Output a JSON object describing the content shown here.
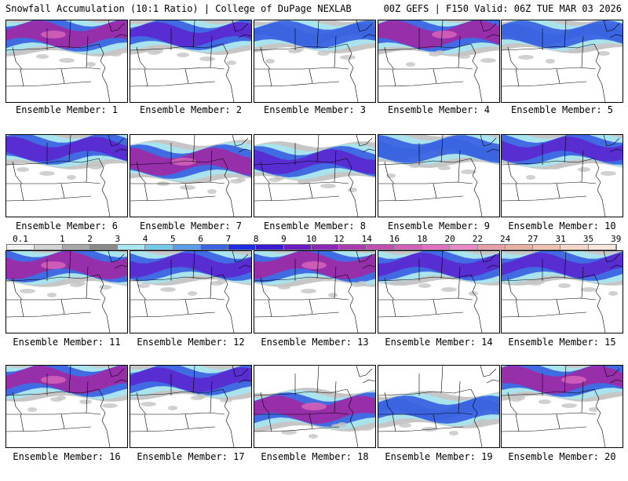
{
  "header": {
    "title_left": "Snowfall Accumulation (10:1 Ratio) | College of DuPage NEXLAB",
    "title_right": "00Z GEFS | F150 Valid: 06Z TUE MAR 03 2026"
  },
  "members": [
    {
      "label": "Ensemble Member: 1",
      "intensity": "heavy",
      "band": "north"
    },
    {
      "label": "Ensemble Member: 2",
      "intensity": "moderate",
      "band": "north"
    },
    {
      "label": "Ensemble Member: 3",
      "intensity": "light",
      "band": "north"
    },
    {
      "label": "Ensemble Member: 4",
      "intensity": "heavy",
      "band": "north"
    },
    {
      "label": "Ensemble Member: 5",
      "intensity": "light",
      "band": "north"
    },
    {
      "label": "Ensemble Member: 6",
      "intensity": "moderate",
      "band": "north"
    },
    {
      "label": "Ensemble Member: 7",
      "intensity": "heavy",
      "band": "middle"
    },
    {
      "label": "Ensemble Member: 8",
      "intensity": "moderate",
      "band": "middle"
    },
    {
      "label": "Ensemble Member: 9",
      "intensity": "light",
      "band": "north"
    },
    {
      "label": "Ensemble Member: 10",
      "intensity": "moderate",
      "band": "north"
    },
    {
      "label": "Ensemble Member: 11",
      "intensity": "heavy",
      "band": "north"
    },
    {
      "label": "Ensemble Member: 12",
      "intensity": "moderate",
      "band": "north"
    },
    {
      "label": "Ensemble Member: 13",
      "intensity": "heavy",
      "band": "north"
    },
    {
      "label": "Ensemble Member: 14",
      "intensity": "moderate",
      "band": "north"
    },
    {
      "label": "Ensemble Member: 15",
      "intensity": "moderate",
      "band": "north"
    },
    {
      "label": "Ensemble Member: 16",
      "intensity": "heavy",
      "band": "north"
    },
    {
      "label": "Ensemble Member: 17",
      "intensity": "moderate",
      "band": "north"
    },
    {
      "label": "Ensemble Member: 18",
      "intensity": "heavy",
      "band": "south"
    },
    {
      "label": "Ensemble Member: 19",
      "intensity": "light",
      "band": "south"
    },
    {
      "label": "Ensemble Member: 20",
      "intensity": "heavy",
      "band": "north"
    }
  ],
  "colorbar": {
    "labels": [
      "0.1",
      "1",
      "2",
      "3",
      "4",
      "5",
      "6",
      "7",
      "8",
      "9",
      "10",
      "12",
      "14",
      "16",
      "18",
      "20",
      "22",
      "24",
      "27",
      "31",
      "35",
      "39"
    ],
    "colors": [
      "#f0f0f0",
      "#d2d2d2",
      "#a8a8a8",
      "#8a8a8a",
      "#a8e6f0",
      "#74c8e8",
      "#5c9ce8",
      "#3b64e0",
      "#1c2ee0",
      "#3a1cd0",
      "#6a1cc0",
      "#8c28b8",
      "#a83cb0",
      "#c050b0",
      "#d060b8",
      "#e070c0",
      "#e888c8",
      "#e8a0a8",
      "#e8b0a0",
      "#f0c0b0",
      "#f6d6c8",
      "#fae8de"
    ]
  }
}
